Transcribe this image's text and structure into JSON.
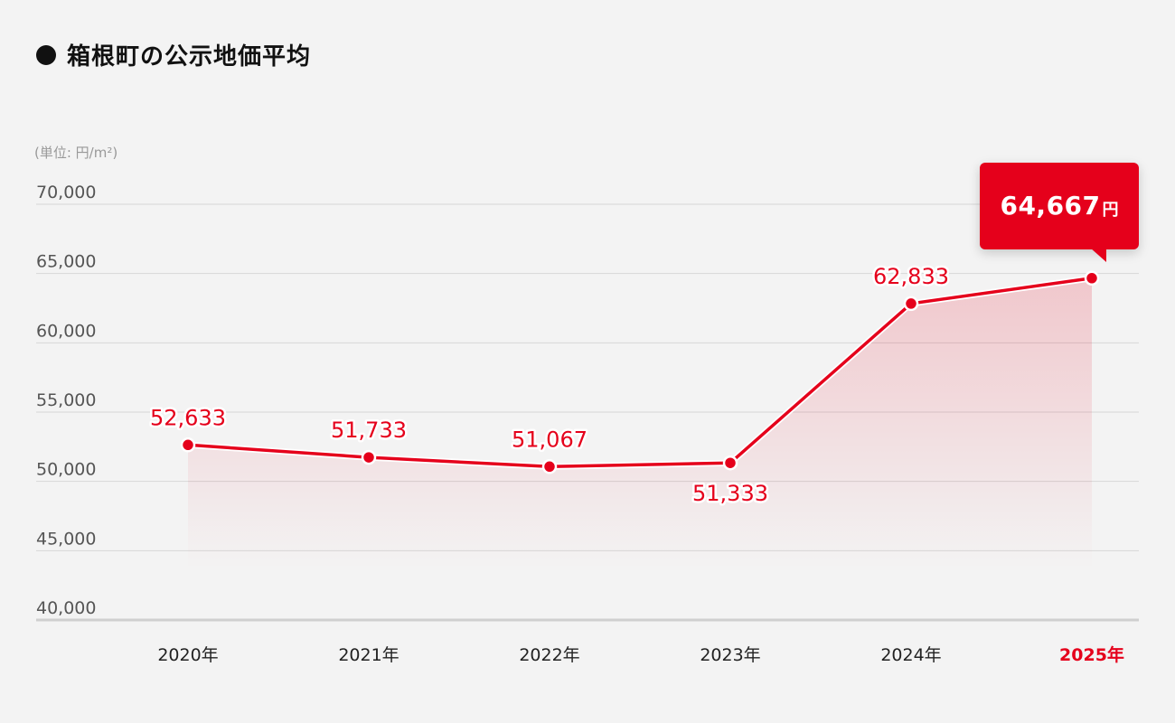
{
  "title": "箱根町の公示地価平均",
  "unit_label": "(単位: 円/m²)",
  "highlight": {
    "value": "64,667",
    "unit": "円"
  },
  "colors": {
    "accent": "#e5001b",
    "grid": "#d6d6d6",
    "axis": "#cfcfcf",
    "tick": "#555555",
    "label": "#e5001b",
    "x_label": "#222222",
    "x_label_highlight": "#e5001b",
    "background": "#f3f3f3"
  },
  "chart_data": {
    "type": "area",
    "categories": [
      "2020年",
      "2021年",
      "2022年",
      "2023年",
      "2024年",
      "2025年"
    ],
    "values": [
      52633,
      51733,
      51067,
      51333,
      62833,
      64667
    ],
    "value_labels": [
      "52,633",
      "51,733",
      "51,067",
      "51,333",
      "62,833",
      ""
    ],
    "label_positions": [
      "above",
      "above",
      "above",
      "below",
      "above",
      "none"
    ],
    "highlight_index": 5,
    "title": "箱根町の公示地価平均",
    "ylabel": "(単位: 円/m²)",
    "ylim": [
      40000,
      70000
    ],
    "yticks": [
      70000,
      65000,
      60000,
      55000,
      50000,
      45000,
      40000
    ],
    "ytick_labels": [
      "70,000",
      "65,000",
      "60,000",
      "55,000",
      "50,000",
      "45,000",
      "40,000"
    ],
    "grid": true
  }
}
